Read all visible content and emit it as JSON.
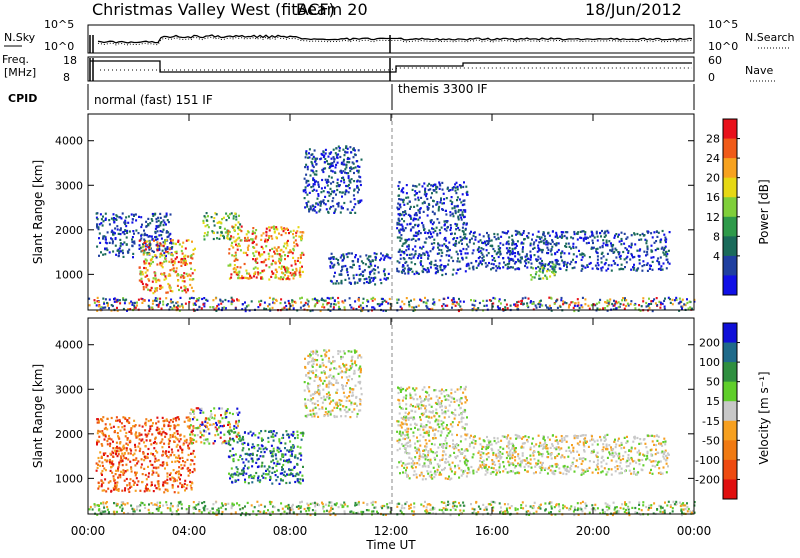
{
  "header": {
    "title": "Christmas Valley West (fitACF)",
    "beam": "Beam 20",
    "date": "18/Jun/2012"
  },
  "summary_panels": {
    "nsky_label": "N.Sky",
    "nsky_ticks": [
      "10^5",
      "10^0"
    ],
    "nsearch_label": "N.Search",
    "nsearch_ticks": [
      "10^5",
      "10^0"
    ],
    "freq_label": "Freq.",
    "freq_unit": "[MHz]",
    "freq_ticks": [
      "18",
      "8"
    ],
    "nave_label": "Nave",
    "nave_ticks": [
      "60",
      "0"
    ],
    "cpid_label": "CPID",
    "cpid_segments": [
      {
        "label": "normal (fast) 151 IF",
        "start_hour": 0,
        "end_hour": 12
      },
      {
        "label": "themis 3300 IF",
        "start_hour": 12,
        "end_hour": 24
      }
    ]
  },
  "chart_data": [
    {
      "type": "heatmap",
      "panel": "power",
      "ylabel": "Slant Range [km]",
      "yticks": [
        1000,
        2000,
        3000,
        4000
      ],
      "ylim": [
        200,
        4600
      ],
      "xlim": [
        0,
        24
      ],
      "colorbar": {
        "label": "Power [dB]",
        "ticks": [
          "28",
          "24",
          "20",
          "16",
          "12",
          "8",
          "4"
        ],
        "colors": [
          "#e8101a",
          "#f05a18",
          "#f7a21f",
          "#e6d814",
          "#7fcf3a",
          "#2e9a4a",
          "#1a6a5a",
          "#1f3fa0",
          "#1010e6"
        ]
      },
      "echo_regions": [
        {
          "hour_start": 0.3,
          "hour_end": 3.3,
          "range_start": 1400,
          "range_end": 2400,
          "level": "weak"
        },
        {
          "hour_start": 2.0,
          "hour_end": 4.2,
          "range_start": 600,
          "range_end": 1800,
          "level": "strong"
        },
        {
          "hour_start": 4.5,
          "hour_end": 6.0,
          "range_start": 1800,
          "range_end": 2400,
          "level": "medium"
        },
        {
          "hour_start": 5.5,
          "hour_end": 8.5,
          "range_start": 900,
          "range_end": 2100,
          "level": "strong"
        },
        {
          "hour_start": 8.5,
          "hour_end": 10.8,
          "range_start": 2400,
          "range_end": 3900,
          "level": "weak"
        },
        {
          "hour_start": 9.5,
          "hour_end": 12.0,
          "range_start": 800,
          "range_end": 1500,
          "level": "weak"
        },
        {
          "hour_start": 12.2,
          "hour_end": 15.0,
          "range_start": 1000,
          "range_end": 3100,
          "level": "weak"
        },
        {
          "hour_start": 15.0,
          "hour_end": 23.0,
          "range_start": 1100,
          "range_end": 2000,
          "level": "weak"
        },
        {
          "hour_start": 17.5,
          "hour_end": 18.5,
          "range_start": 900,
          "range_end": 1300,
          "level": "medium"
        },
        {
          "hour_start": 0.0,
          "hour_end": 24.0,
          "range_start": 200,
          "range_end": 500,
          "level": "ground"
        }
      ]
    },
    {
      "type": "heatmap",
      "panel": "velocity",
      "ylabel": "Slant Range [km]",
      "xlabel": "Time UT",
      "xticks": [
        "00:00",
        "04:00",
        "08:00",
        "12:00",
        "16:00",
        "20:00",
        "00:00"
      ],
      "yticks": [
        1000,
        2000,
        3000,
        4000
      ],
      "ylim": [
        200,
        4600
      ],
      "xlim": [
        0,
        24
      ],
      "colorbar": {
        "label": "Velocity [m s⁻¹]",
        "ticks": [
          "200",
          "100",
          "50",
          "15",
          "-15",
          "-50",
          "-100",
          "-200"
        ],
        "colors": [
          "#1010d8",
          "#1f6a8a",
          "#2f8f3f",
          "#5fce2a",
          "#c8c8c8",
          "#f6a020",
          "#f07a12",
          "#ee4a10",
          "#e00f0f"
        ]
      },
      "echo_regions": [
        {
          "hour_start": 0.3,
          "hour_end": 4.2,
          "range_start": 700,
          "range_end": 2400,
          "level": "negative"
        },
        {
          "hour_start": 4.0,
          "hour_end": 6.0,
          "range_start": 1800,
          "range_end": 2600,
          "level": "mixed"
        },
        {
          "hour_start": 5.5,
          "hour_end": 8.5,
          "range_start": 900,
          "range_end": 2100,
          "level": "positive"
        },
        {
          "hour_start": 8.5,
          "hour_end": 10.8,
          "range_start": 2400,
          "range_end": 3900,
          "level": "near-zero"
        },
        {
          "hour_start": 12.2,
          "hour_end": 15.0,
          "range_start": 1000,
          "range_end": 3100,
          "level": "near-zero"
        },
        {
          "hour_start": 15.0,
          "hour_end": 23.0,
          "range_start": 1100,
          "range_end": 2000,
          "level": "near-zero"
        },
        {
          "hour_start": 0.0,
          "hour_end": 24.0,
          "range_start": 200,
          "range_end": 500,
          "level": "ground"
        }
      ]
    }
  ]
}
